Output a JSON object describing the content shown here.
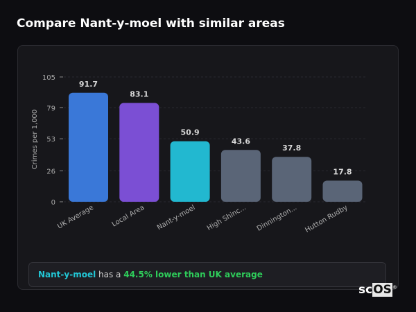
{
  "title": "Compare Nant-y-moel with similar areas",
  "chart_data": {
    "type": "bar",
    "categories": [
      "UK Average",
      "Local Area",
      "Nant-y-moel",
      "High Shinc...",
      "Dinnington...",
      "Hutton Rudby"
    ],
    "values": [
      91.7,
      83.1,
      50.9,
      43.6,
      37.8,
      17.8
    ],
    "data_labels": [
      "91.7",
      "83.1",
      "50.9",
      "43.6",
      "37.8",
      "17.8"
    ],
    "colors": [
      "#3a78d8",
      "#7b4fd4",
      "#22b8d0",
      "#5a6577",
      "#5a6577",
      "#5a6577"
    ],
    "ylabel": "Crimes per 1,000",
    "yticks": [
      0,
      26,
      53,
      79,
      105
    ],
    "ylim": [
      0,
      105
    ],
    "grid": true
  },
  "footer": {
    "area": "Nant-y-moel",
    "middle": " has a ",
    "comparison": "44.5% lower than UK average"
  },
  "logo": {
    "text_a": "sc",
    "text_b": "OS",
    "mark": "®"
  }
}
